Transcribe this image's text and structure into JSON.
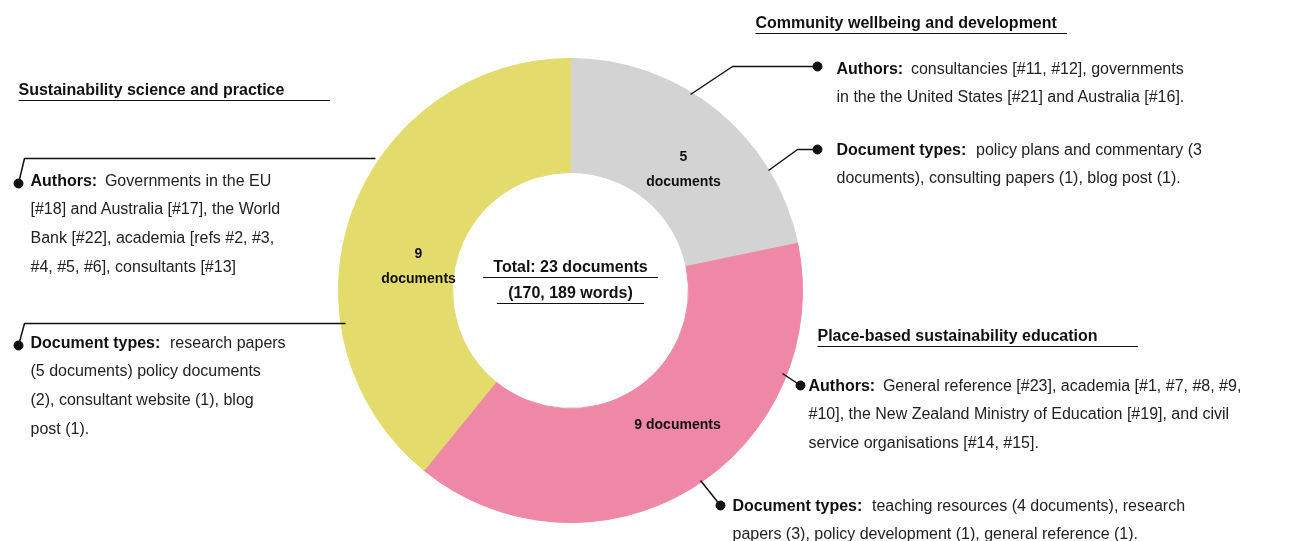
{
  "chart_data": {
    "type": "donut",
    "categories": [
      "Community wellbeing and development",
      "Place-based sustainability education",
      "Sustainability science and practice"
    ],
    "values": [
      5,
      9,
      9
    ],
    "colors": [
      "#d3d3d3",
      "#ef88a6",
      "#e3db6b"
    ],
    "value_labels": [
      "5\ndocuments",
      "9 documents",
      "9\ndocuments"
    ],
    "annotations": [
      "Total: 23 documents\n(170, 189 words)",
      "Authors: consultancies  [#11, #12], governments\nin the the United States [#21] and Australia [#16].",
      "Document types: policy plans and commentary (3\ndocuments), consulting papers (1), blog post (1).",
      "Authors: General reference [#23], academia [#1, #7, #8, #9,\n#10], the New Zealand Ministry of Education [#19], and civil\nservice organisations [#14, #15].",
      "Document types: teaching resources (4 documents), research\npapers (3), policy development (1), general reference (1).",
      "Authors:  Governments in the EU\n[#18] and Australia [#17], the World\nBank [#22], academia [refs #2, #3,\n#4, #5, #6], consultants  [#13]",
      "Document types: research papers\n(5 documents) policy documents\n(2), consultant website (1), blog\npost (1)."
    ]
  }
}
